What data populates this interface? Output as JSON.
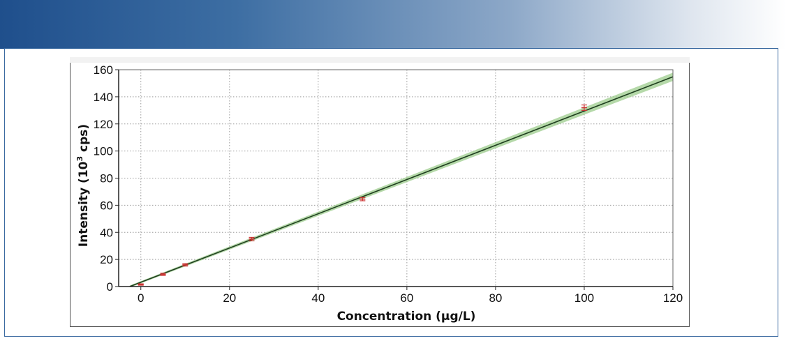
{
  "chart_data": {
    "type": "scatter",
    "xlabel": "Concentration (μg/L)",
    "ylabel": {
      "prefix": "Intensity (10",
      "superscript": "3",
      "suffix": " cps)"
    },
    "xlim": [
      -5,
      120
    ],
    "ylim": [
      0,
      160
    ],
    "x_ticks": [
      0,
      20,
      40,
      60,
      80,
      100,
      120
    ],
    "y_ticks": [
      0,
      20,
      40,
      60,
      80,
      100,
      120,
      140,
      160
    ],
    "grid": true,
    "series": [
      {
        "type": "scatter",
        "marker": "error-bar",
        "color": "#cc3333",
        "x": [
          0,
          5,
          10,
          25,
          50,
          100
        ],
        "y": [
          1.5,
          9,
          16,
          35,
          64.5,
          132
        ],
        "error": [
          0.5,
          0.8,
          0.9,
          1.3,
          1.2,
          2.0
        ]
      },
      {
        "type": "line",
        "fit": "linear",
        "color": "#1f3f1f",
        "band_color": "#9ccc8c",
        "x": [
          -2.5,
          122
        ],
        "y": [
          0,
          157.3
        ]
      }
    ]
  }
}
